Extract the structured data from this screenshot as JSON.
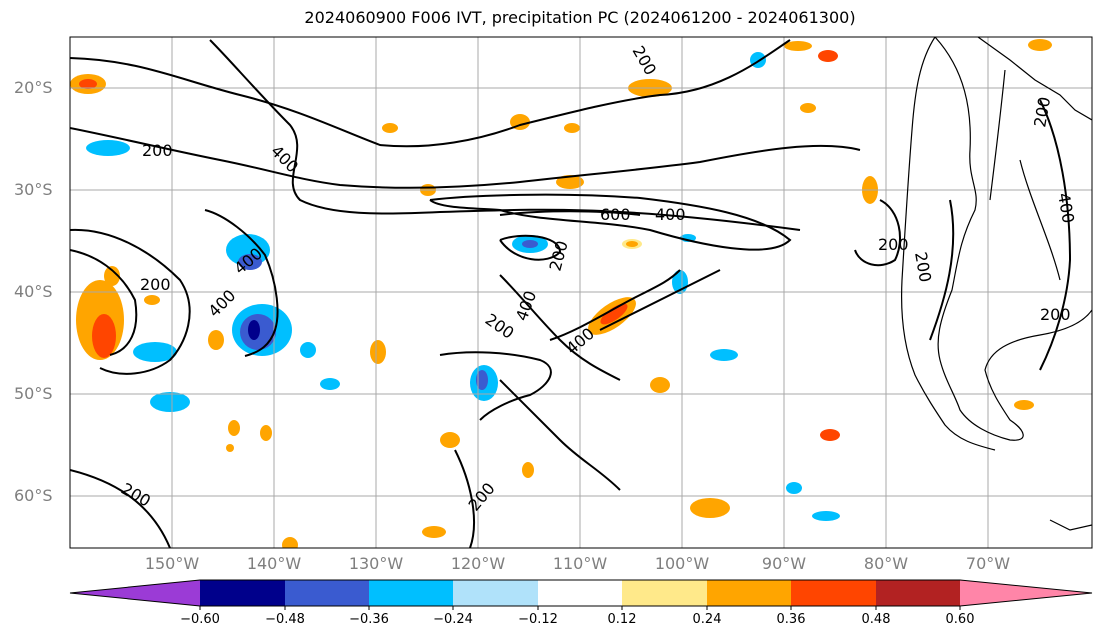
{
  "title": "2024060900 F006 IVT, precipitation PC (2024061200 - 2024061300)",
  "lat_labels": [
    "20°S",
    "30°S",
    "40°S",
    "50°S",
    "60°S"
  ],
  "lon_labels": [
    "150°W",
    "140°W",
    "130°W",
    "120°W",
    "110°W",
    "100°W",
    "90°W",
    "80°W",
    "70°W"
  ],
  "contour_labels": [
    "200",
    "400",
    "200",
    "400",
    "400",
    "200",
    "400",
    "200",
    "400",
    "200",
    "600",
    "400",
    "200",
    "200",
    "200",
    "400",
    "200",
    "200",
    "200"
  ],
  "colorbar": {
    "ticks": [
      "−0.60",
      "−0.48",
      "−0.36",
      "−0.24",
      "−0.12",
      "0.12",
      "0.24",
      "0.36",
      "0.48",
      "0.60"
    ],
    "colors": [
      "#9b3bd6",
      "#00008b",
      "#3a5bd0",
      "#00bfff",
      "#b0e2fa",
      "#ffffff",
      "#ffe98a",
      "#ffa500",
      "#ff4500",
      "#b22222",
      "#ff85a8"
    ]
  }
}
